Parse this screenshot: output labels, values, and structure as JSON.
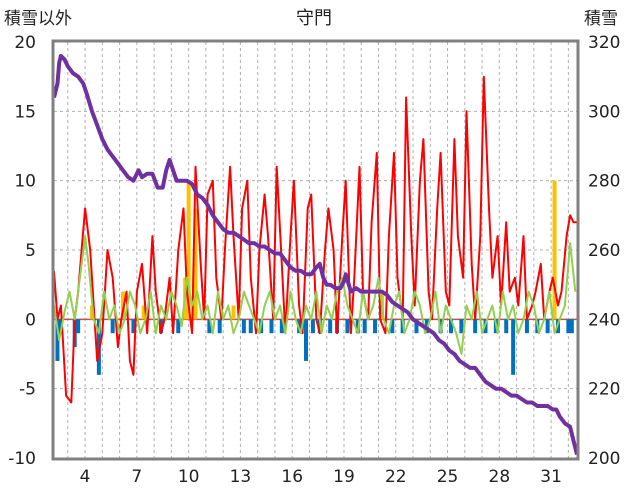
{
  "chart_data": {
    "type": "line",
    "title": "守門",
    "ylabel_left": "積雪以外",
    "ylabel_right": "積雪",
    "x_range": [
      2.2,
      32.5
    ],
    "x_ticks": [
      4,
      7,
      10,
      13,
      16,
      19,
      22,
      25,
      28,
      31
    ],
    "y_left_range": [
      -10,
      20
    ],
    "y_left_ticks": [
      -10,
      -5,
      0,
      5,
      10,
      15,
      20
    ],
    "y_right_range": [
      200,
      320
    ],
    "y_right_ticks": [
      200,
      220,
      240,
      260,
      280,
      300,
      320
    ],
    "grid": "dashed",
    "colors": {
      "temperature": "#ff0000",
      "wind": "#92d050",
      "precip_pos": "#ffc000",
      "precip_neg": "#0070c0",
      "snow_depth": "#7030a0",
      "axis": "#808080"
    },
    "series": [
      {
        "key": "temperature",
        "axis": "left",
        "x": [
          2.2,
          2.4,
          2.6,
          2.9,
          3.2,
          3.4,
          3.6,
          3.8,
          4.0,
          4.3,
          4.5,
          4.7,
          5.0,
          5.3,
          5.6,
          5.9,
          6.1,
          6.4,
          6.6,
          6.8,
          7.0,
          7.3,
          7.6,
          7.9,
          8.1,
          8.4,
          8.6,
          8.9,
          9.1,
          9.4,
          9.7,
          9.9,
          10.2,
          10.4,
          10.7,
          10.9,
          11.1,
          11.4,
          11.6,
          11.9,
          12.1,
          12.4,
          12.6,
          12.9,
          13.1,
          13.4,
          13.6,
          13.9,
          14.1,
          14.4,
          14.6,
          14.9,
          15.1,
          15.4,
          15.6,
          15.9,
          16.1,
          16.4,
          16.6,
          16.9,
          17.1,
          17.4,
          17.6,
          17.9,
          18.1,
          18.4,
          18.6,
          18.9,
          19.1,
          19.4,
          19.6,
          19.9,
          20.1,
          20.4,
          20.6,
          20.9,
          21.1,
          21.4,
          21.6,
          21.9,
          22.1,
          22.4,
          22.6,
          22.9,
          23.1,
          23.4,
          23.6,
          23.9,
          24.1,
          24.4,
          24.6,
          24.9,
          25.1,
          25.4,
          25.6,
          25.9,
          26.1,
          26.4,
          26.6,
          26.9,
          27.1,
          27.4,
          27.6,
          27.9,
          28.1,
          28.4,
          28.6,
          28.9,
          29.1,
          29.4,
          29.6,
          29.9,
          30.1,
          30.4,
          30.6,
          30.9,
          31.1,
          31.4,
          31.6,
          31.9,
          32.1,
          32.3,
          32.5
        ],
        "y": [
          3.5,
          0,
          1,
          -5.5,
          -6,
          0,
          2,
          5,
          8,
          5,
          1,
          -3,
          -1,
          5,
          3,
          -2,
          0,
          2,
          -3,
          -4,
          2,
          4,
          -1,
          6,
          2,
          -1,
          0,
          3,
          -1,
          5,
          8,
          2,
          -1,
          11,
          4,
          0,
          9,
          10,
          3,
          0,
          5,
          11,
          6,
          0,
          8,
          10,
          3,
          -1,
          5,
          9,
          6,
          0,
          11,
          4,
          -1,
          6,
          10,
          1,
          -1,
          8,
          9,
          0,
          -1,
          5,
          8,
          5,
          -1,
          6,
          10,
          -1,
          3,
          11,
          2,
          0,
          7,
          12,
          0,
          -1,
          6,
          12,
          3,
          0,
          16,
          6,
          1,
          10,
          13,
          2,
          0,
          8,
          12,
          2,
          1,
          13,
          6,
          3,
          15,
          4,
          0,
          6,
          17.5,
          8,
          3,
          6,
          1,
          7,
          2,
          3,
          1,
          6,
          0,
          1,
          2,
          4,
          0,
          2,
          3,
          1,
          2,
          6,
          7.5,
          7,
          7
        ]
      },
      {
        "key": "wind",
        "axis": "left",
        "x": [
          2.2,
          2.5,
          2.8,
          3.1,
          3.4,
          3.7,
          4.0,
          4.2,
          4.5,
          4.8,
          5.1,
          5.4,
          5.7,
          6.0,
          6.3,
          6.6,
          6.9,
          7.2,
          7.5,
          7.8,
          8.1,
          8.4,
          8.7,
          9.0,
          9.3,
          9.6,
          9.9,
          10.2,
          10.5,
          10.8,
          11.1,
          11.4,
          11.7,
          12.0,
          12.3,
          12.6,
          12.9,
          13.2,
          13.5,
          13.8,
          14.1,
          14.4,
          14.7,
          15.0,
          15.3,
          15.6,
          15.9,
          16.2,
          16.5,
          16.8,
          17.1,
          17.4,
          17.7,
          18.0,
          18.3,
          18.6,
          18.9,
          19.2,
          19.5,
          19.8,
          20.1,
          20.4,
          20.7,
          21.0,
          21.3,
          21.6,
          21.9,
          22.2,
          22.5,
          22.8,
          23.1,
          23.4,
          23.7,
          24.0,
          24.3,
          24.6,
          24.9,
          25.2,
          25.5,
          25.8,
          26.1,
          26.4,
          26.7,
          27.0,
          27.3,
          27.6,
          27.9,
          28.2,
          28.5,
          28.8,
          29.1,
          29.4,
          29.7,
          30.0,
          30.3,
          30.6,
          30.9,
          31.2,
          31.5,
          31.8,
          32.1,
          32.4
        ],
        "y": [
          1,
          -1.5,
          0.5,
          2,
          0,
          3,
          6,
          4,
          0,
          -1,
          2,
          0,
          1,
          -1,
          0,
          2,
          1,
          -1,
          0,
          2,
          -1,
          1,
          0,
          2,
          1,
          -0.5,
          3,
          1,
          2,
          0,
          1,
          -1,
          2,
          0,
          1,
          -1,
          0,
          2,
          1,
          0,
          -1,
          1,
          2,
          0,
          1,
          -1,
          2,
          0,
          -1,
          1,
          0,
          2,
          -1,
          1,
          0,
          2,
          3,
          1,
          0,
          -1,
          2,
          0,
          1,
          3,
          0,
          -1,
          1,
          2,
          -1,
          0,
          2,
          1,
          -1,
          0,
          2,
          -1,
          1,
          0,
          -1,
          -2.5,
          1,
          0,
          2,
          -1,
          0,
          1,
          -1,
          2,
          0,
          1,
          -1,
          0,
          2,
          1,
          -1,
          0,
          2,
          -1,
          0,
          1,
          5.5,
          2
        ]
      },
      {
        "key": "precip",
        "axis": "left",
        "type": "bar",
        "x": [
          2.4,
          2.6,
          3.4,
          3.6,
          4.4,
          4.8,
          5.6,
          6.2,
          6.8,
          7.4,
          8.4,
          9.4,
          9.8,
          10.0,
          10.4,
          11.2,
          11.8,
          12.6,
          13.2,
          13.6,
          14.2,
          14.8,
          15.4,
          16.4,
          16.8,
          17.2,
          17.6,
          18.2,
          18.6,
          19.2,
          19.8,
          20.2,
          20.8,
          21.2,
          21.8,
          22.4,
          23.2,
          23.8,
          24.6,
          25.2,
          25.8,
          26.6,
          27.2,
          27.8,
          28.4,
          28.8,
          29.6,
          30.2,
          30.8,
          31.2,
          31.4,
          32.0,
          32.2
        ],
        "y": [
          -3,
          -1,
          -2,
          -1,
          1,
          -4,
          -1,
          2,
          -1,
          1,
          -1,
          -1,
          3,
          10,
          8,
          -1,
          -1,
          1,
          -1,
          -1,
          -1,
          -1,
          -1,
          -1,
          -3,
          -1,
          -1,
          -1,
          -1,
          -1,
          -1,
          -1,
          -1,
          2,
          -1,
          -1,
          -1,
          -1,
          -1,
          -1,
          -1,
          -1,
          -1,
          -1,
          -1,
          -4,
          -1,
          -1,
          -1,
          10,
          -1,
          -1,
          -1
        ]
      },
      {
        "key": "snow_depth",
        "axis": "right",
        "x": [
          2.2,
          2.4,
          2.5,
          2.6,
          2.8,
          3.0,
          3.3,
          3.6,
          3.9,
          4.1,
          4.4,
          4.7,
          5.0,
          5.3,
          5.6,
          5.9,
          6.2,
          6.5,
          6.8,
          7.0,
          7.1,
          7.3,
          7.6,
          7.9,
          8.2,
          8.5,
          8.7,
          8.9,
          9.1,
          9.3,
          9.6,
          9.9,
          10.2,
          10.5,
          10.8,
          11.1,
          11.4,
          11.7,
          12.0,
          12.3,
          12.6,
          12.9,
          13.2,
          13.5,
          13.8,
          14.1,
          14.4,
          14.7,
          15.0,
          15.3,
          15.6,
          15.9,
          16.2,
          16.5,
          16.8,
          17.1,
          17.4,
          17.6,
          17.8,
          17.9,
          18.0,
          18.2,
          18.5,
          18.8,
          19.0,
          19.1,
          19.4,
          19.7,
          20.0,
          20.3,
          20.6,
          20.9,
          21.2,
          21.5,
          21.8,
          22.1,
          22.4,
          22.7,
          23.0,
          23.3,
          23.6,
          23.9,
          24.2,
          24.5,
          24.8,
          25.1,
          25.4,
          25.7,
          26.0,
          26.3,
          26.6,
          26.9,
          27.2,
          27.5,
          27.8,
          28.1,
          28.4,
          28.7,
          29.0,
          29.3,
          29.6,
          29.9,
          30.2,
          30.5,
          30.8,
          31.1,
          31.3,
          31.5,
          31.8,
          32.1,
          32.3,
          32.5
        ],
        "y": [
          304,
          308,
          314,
          316,
          315,
          313,
          311,
          310,
          308,
          305,
          300,
          296,
          292,
          289,
          287,
          285,
          283,
          281,
          280,
          282,
          283,
          281,
          282,
          282,
          278,
          278,
          283,
          286,
          283,
          280,
          280,
          280,
          279,
          276,
          275,
          273,
          270,
          268,
          266,
          265,
          265,
          264,
          263,
          262,
          262,
          261,
          261,
          260,
          259,
          259,
          257,
          255,
          254,
          254,
          253,
          253,
          255,
          256,
          252,
          251,
          250,
          250,
          249,
          249,
          251,
          253,
          248,
          249,
          248,
          248,
          248,
          248,
          248,
          247,
          245,
          244,
          243,
          242,
          240,
          239,
          238,
          237,
          236,
          234,
          233,
          231,
          230,
          228,
          227,
          226,
          226,
          224,
          222,
          221,
          220,
          220,
          219,
          218,
          218,
          217,
          216,
          216,
          215,
          215,
          215,
          214,
          214,
          212,
          210,
          209,
          205,
          201
        ]
      }
    ]
  }
}
